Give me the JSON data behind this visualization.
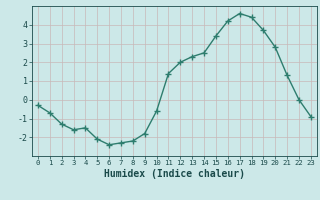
{
  "x": [
    0,
    1,
    2,
    3,
    4,
    5,
    6,
    7,
    8,
    9,
    10,
    11,
    12,
    13,
    14,
    15,
    16,
    17,
    18,
    19,
    20,
    21,
    22,
    23
  ],
  "y": [
    -0.3,
    -0.7,
    -1.3,
    -1.6,
    -1.5,
    -2.1,
    -2.4,
    -2.3,
    -2.2,
    -1.8,
    -0.6,
    1.4,
    2.0,
    2.3,
    2.5,
    3.4,
    4.2,
    4.6,
    4.4,
    3.7,
    2.8,
    1.3,
    0.0,
    -0.9
  ],
  "xlabel": "Humidex (Indice chaleur)",
  "xlim": [
    -0.5,
    23.5
  ],
  "ylim": [
    -3,
    5
  ],
  "yticks": [
    -2,
    -1,
    0,
    1,
    2,
    3,
    4
  ],
  "xticks": [
    0,
    1,
    2,
    3,
    4,
    5,
    6,
    7,
    8,
    9,
    10,
    11,
    12,
    13,
    14,
    15,
    16,
    17,
    18,
    19,
    20,
    21,
    22,
    23
  ],
  "line_color": "#2e7d6e",
  "marker": "+",
  "bg_color": "#cce8e8",
  "grid_color": "#b8d4d4",
  "label_color": "#1a4a4a",
  "xlabel_fontsize": 7,
  "tick_fontsize": 6,
  "linewidth": 1.0,
  "markersize": 4
}
